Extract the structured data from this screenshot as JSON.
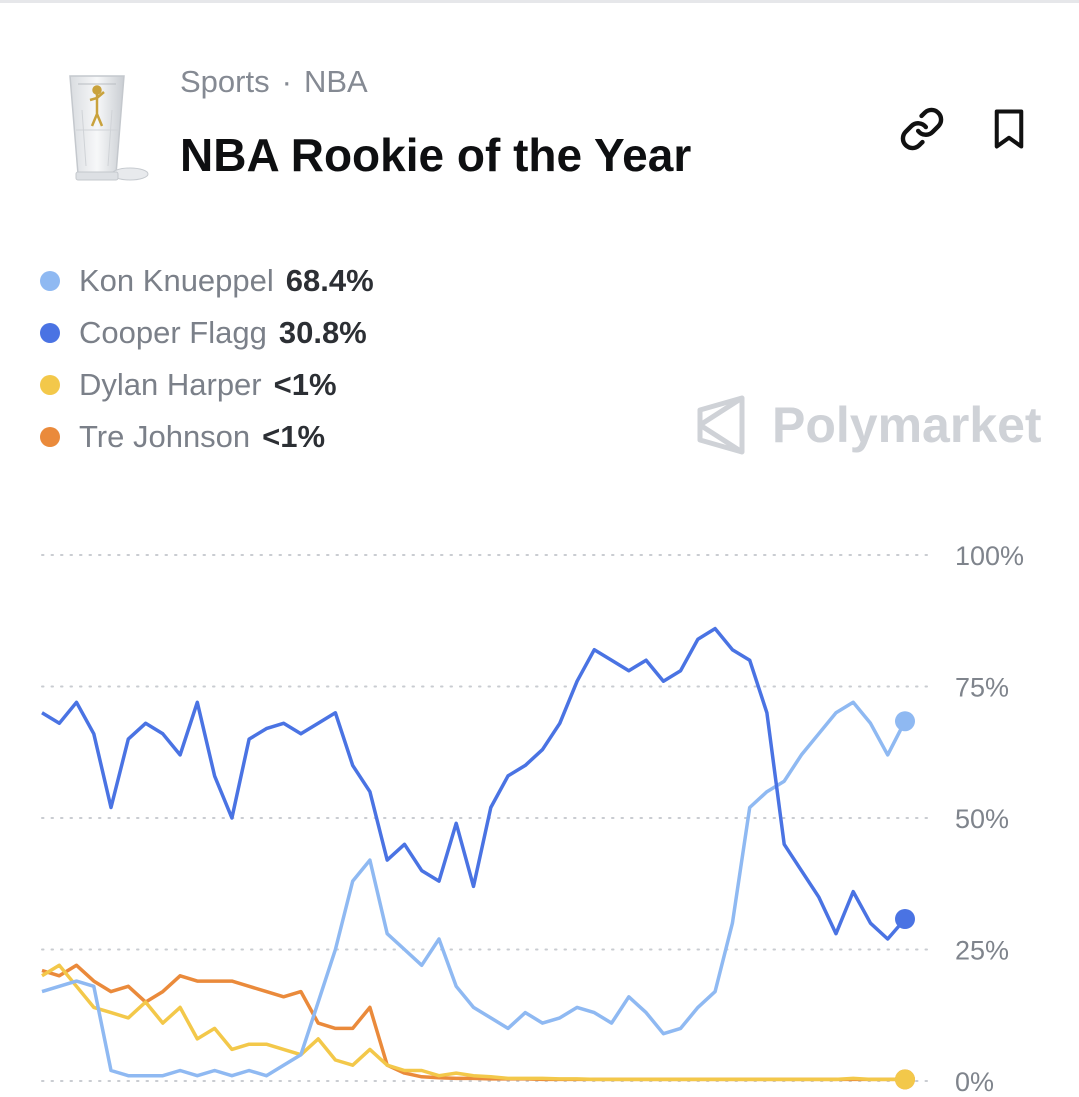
{
  "header": {
    "breadcrumb": {
      "category": "Sports",
      "separator": "·",
      "subcategory": "NBA"
    },
    "title": "NBA Rookie of the Year",
    "market_image_icon": "trophy-image",
    "actions": [
      {
        "icon": "link-icon"
      },
      {
        "icon": "bookmark-icon"
      }
    ]
  },
  "legend": [
    {
      "name": "Kon Knueppel",
      "value": "68.4%",
      "color": "#8fb9f2"
    },
    {
      "name": "Cooper Flagg",
      "value": "30.8%",
      "color": "#4a73e3"
    },
    {
      "name": "Dylan Harper",
      "value": "<1%",
      "color": "#f3c84a"
    },
    {
      "name": "Tre Johnson",
      "value": "<1%",
      "color": "#ea8a3b"
    }
  ],
  "watermark": {
    "icon": "polymarket-logo-icon",
    "text": "Polymarket"
  },
  "chart_data": {
    "type": "line",
    "ylim": [
      0,
      100
    ],
    "y_ticks": [
      "100%",
      "75%",
      "50%",
      "25%",
      "0%"
    ],
    "y_tick_values": [
      100,
      75,
      50,
      25,
      0
    ],
    "grid": "horizontal-dotted",
    "legend_position": "top-left",
    "x_axis_labels_shown": false,
    "series": [
      {
        "name": "Kon Knueppel",
        "color": "#8fb9f2",
        "y": [
          17,
          18,
          19,
          18,
          2,
          1,
          1,
          1,
          2,
          1,
          2,
          1,
          2,
          1,
          3,
          5,
          15,
          25,
          38,
          42,
          28,
          25,
          22,
          27,
          18,
          14,
          12,
          10,
          13,
          11,
          12,
          14,
          13,
          11,
          16,
          13,
          9,
          10,
          14,
          17,
          30,
          52,
          55,
          57,
          62,
          66,
          70,
          72,
          68,
          62,
          68.4
        ]
      },
      {
        "name": "Cooper Flagg",
        "color": "#4a73e3",
        "y": [
          70,
          68,
          72,
          66,
          52,
          65,
          68,
          66,
          62,
          72,
          58,
          50,
          65,
          67,
          68,
          66,
          68,
          70,
          60,
          55,
          42,
          45,
          40,
          38,
          49,
          37,
          52,
          58,
          60,
          63,
          68,
          76,
          82,
          80,
          78,
          80,
          76,
          78,
          84,
          86,
          82,
          80,
          70,
          45,
          40,
          35,
          28,
          36,
          30,
          27,
          30.8
        ]
      },
      {
        "name": "Dylan Harper",
        "color": "#f3c84a",
        "y": [
          20,
          22,
          18,
          14,
          13,
          12,
          15,
          11,
          14,
          8,
          10,
          6,
          7,
          7,
          6,
          5,
          8,
          4,
          3,
          6,
          3,
          2,
          2,
          1,
          1.5,
          1,
          0.8,
          0.5,
          0.5,
          0.5,
          0.4,
          0.4,
          0.3,
          0.3,
          0.3,
          0.3,
          0.3,
          0.3,
          0.3,
          0.3,
          0.3,
          0.3,
          0.3,
          0.3,
          0.3,
          0.3,
          0.3,
          0.5,
          0.3,
          0.3,
          0.3
        ]
      },
      {
        "name": "Tre Johnson",
        "color": "#ea8a3b",
        "y": [
          21,
          20,
          22,
          19,
          17,
          18,
          15,
          17,
          20,
          19,
          19,
          19,
          18,
          17,
          16,
          17,
          11,
          10,
          10,
          14,
          3,
          1.5,
          0.8,
          0.6,
          0.5,
          0.5,
          0.4,
          0.4,
          0.4,
          0.3,
          0.3,
          0.3,
          0.3,
          0.3,
          0.3,
          0.3,
          0.3,
          0.3,
          0.3,
          0.3,
          0.3,
          0.3,
          0.3,
          0.3,
          0.3,
          0.3,
          0.3,
          0.3,
          0.3,
          0.3,
          0.3
        ]
      }
    ]
  }
}
